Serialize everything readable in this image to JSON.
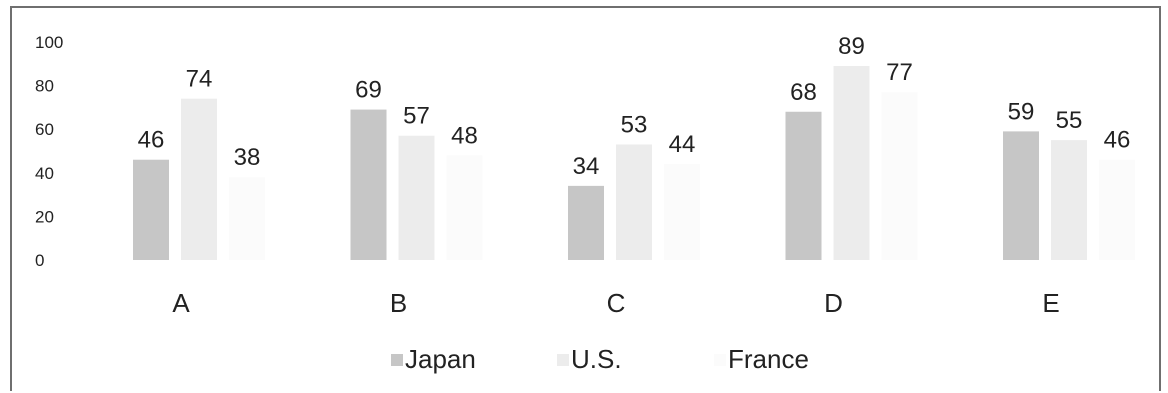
{
  "chart_data": {
    "type": "bar",
    "categories": [
      "A",
      "B",
      "C",
      "D",
      "E"
    ],
    "series": [
      {
        "name": "Japan",
        "values": [
          46,
          69,
          34,
          68,
          59
        ]
      },
      {
        "name": "U.S.",
        "values": [
          74,
          57,
          53,
          89,
          55
        ]
      },
      {
        "name": "France",
        "values": [
          38,
          48,
          44,
          77,
          46
        ]
      }
    ],
    "ylim": [
      0,
      100
    ],
    "yticks": [
      "0",
      "20",
      "40",
      "60",
      "80",
      "100"
    ],
    "grid": false,
    "legend_position": "bottom",
    "colors": {
      "Japan": "#c6c6c6",
      "U.S.": "#ececec",
      "France": "#fbfbfb"
    }
  }
}
